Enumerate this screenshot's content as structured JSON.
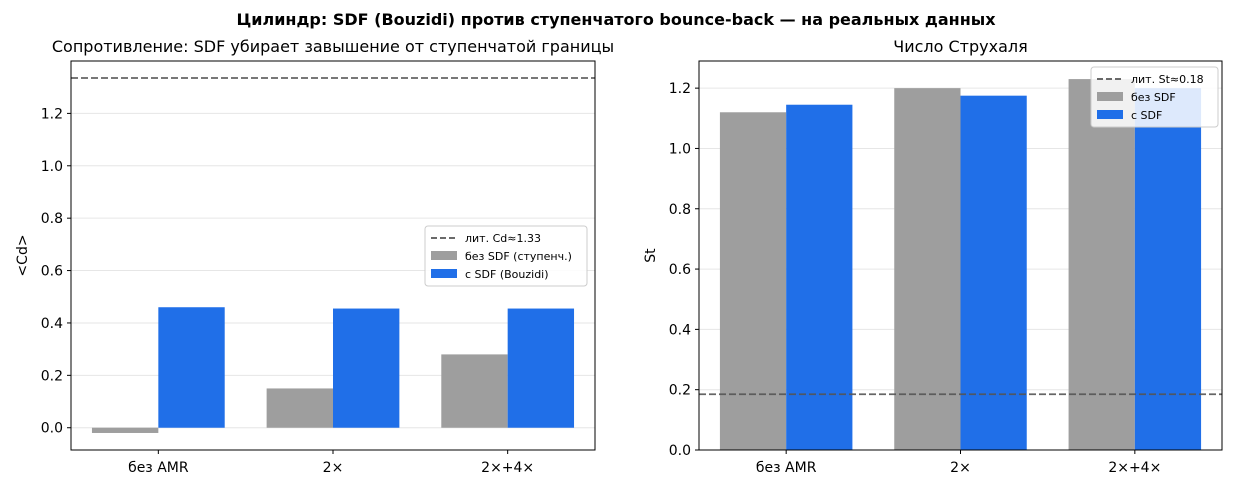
{
  "figure": {
    "suptitle": "Цилиндр: SDF (Bouzidi) против ступенчатого bounce-back — на реальных данных"
  },
  "colors": {
    "no_sdf": "#9e9e9e",
    "sdf": "#206fe8",
    "reference_line": "#555555",
    "grid": "#e6e6e6",
    "axes": "#000000"
  },
  "chart_data": [
    {
      "type": "bar",
      "title": "Сопротивление: SDF убирает завышение от ступенчатой границы",
      "xlabel": "",
      "ylabel": "<Cd>",
      "categories": [
        "без AMR",
        "2×",
        "2×+4×"
      ],
      "series": [
        {
          "name": "без SDF (ступенч.)",
          "values": [
            -0.02,
            0.15,
            0.28
          ]
        },
        {
          "name": "с SDF (Bouzidi)",
          "values": [
            0.46,
            0.455,
            0.455
          ]
        }
      ],
      "reference_line": {
        "name": "лит. Cd≈1.33",
        "value": 1.335
      },
      "ylim": [
        -0.085,
        1.4
      ],
      "yticks": [
        0.0,
        0.2,
        0.4,
        0.6,
        0.8,
        1.0,
        1.2
      ],
      "ytick_labels": [
        "0.0",
        "0.2",
        "0.4",
        "0.6",
        "0.8",
        "1.0",
        "1.2"
      ],
      "grid": "y",
      "legend_position": "center-right"
    },
    {
      "type": "bar",
      "title": "Число Струхаля",
      "xlabel": "",
      "ylabel": "St",
      "categories": [
        "без AMR",
        "2×",
        "2×+4×"
      ],
      "series": [
        {
          "name": "без SDF",
          "values": [
            1.12,
            1.2,
            1.23
          ]
        },
        {
          "name": "с SDF",
          "values": [
            1.145,
            1.175,
            1.2
          ]
        }
      ],
      "reference_line": {
        "name": "лит. St≈0.18",
        "value": 0.185
      },
      "ylim": [
        0.0,
        1.29
      ],
      "yticks": [
        0.0,
        0.2,
        0.4,
        0.6,
        0.8,
        1.0,
        1.2
      ],
      "ytick_labels": [
        "0.0",
        "0.2",
        "0.4",
        "0.6",
        "0.8",
        "1.0",
        "1.2"
      ],
      "grid": "y",
      "legend_position": "top-right"
    }
  ]
}
